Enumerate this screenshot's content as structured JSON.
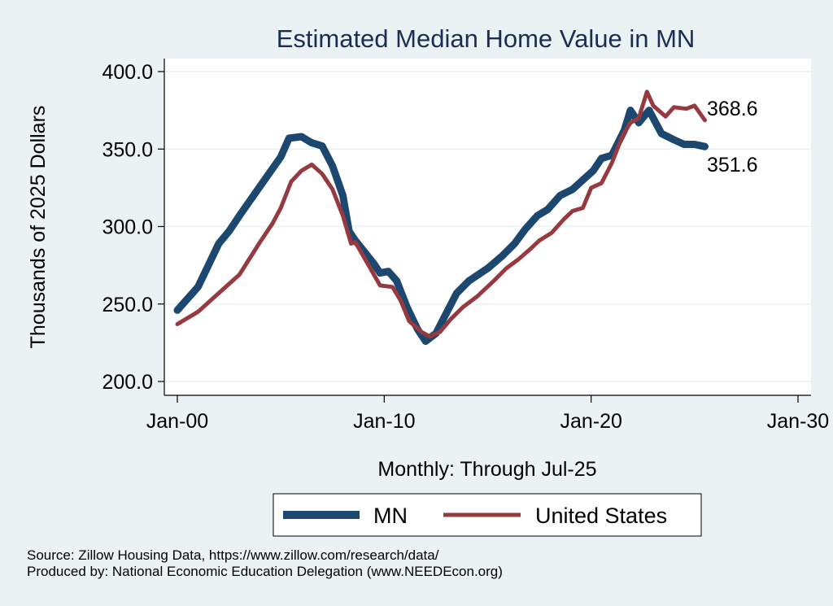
{
  "chart_data": {
    "type": "line",
    "title": "Estimated Median Home Value in MN",
    "xlabel": "Monthly: Through Jul-25",
    "ylabel": "Thousands of 2025 Dollars",
    "ylim": [
      200,
      400
    ],
    "xlim": [
      2000,
      2030
    ],
    "yticks": [
      200,
      250,
      300,
      350,
      400
    ],
    "ytick_labels": [
      "200.0",
      "250.0",
      "300.0",
      "350.0",
      "400.0"
    ],
    "xticks": [
      2000,
      2010,
      2020,
      2030
    ],
    "xtick_labels": [
      "Jan-00",
      "Jan-10",
      "Jan-20",
      "Jan-30"
    ],
    "grid": true,
    "legend_position": "bottom",
    "series": [
      {
        "name": "MN",
        "color": "#1c4870",
        "end_label": "351.6",
        "x": [
          2000.0,
          2001.0,
          2002.0,
          2002.5,
          2003.0,
          2004.0,
          2005.0,
          2005.4,
          2006.0,
          2006.5,
          2007.0,
          2007.5,
          2008.0,
          2008.3,
          2008.6,
          2009.5,
          2009.8,
          2010.2,
          2010.6,
          2011.1,
          2011.6,
          2012.0,
          2012.5,
          2013.0,
          2013.5,
          2014.1,
          2015.0,
          2015.7,
          2016.3,
          2016.8,
          2017.4,
          2017.9,
          2018.5,
          2019.1,
          2019.6,
          2020.1,
          2020.5,
          2021.0,
          2021.6,
          2021.9,
          2022.3,
          2022.8,
          2023.4,
          2024.0,
          2024.5,
          2025.0,
          2025.5
        ],
        "values": [
          246,
          261,
          289,
          297,
          307,
          326,
          345,
          357,
          358,
          354,
          352,
          339,
          320,
          297,
          291,
          276,
          270,
          271,
          265,
          248,
          234,
          226,
          231,
          244,
          257,
          265,
          273,
          281,
          289,
          298,
          307,
          311,
          320,
          324,
          330,
          336,
          344,
          346,
          362,
          375,
          367,
          375,
          360,
          356,
          353,
          353,
          351.6
        ]
      },
      {
        "name": "United States",
        "color": "#963a40",
        "end_label": "368.6",
        "x": [
          2000.0,
          2001.0,
          2002.0,
          2003.0,
          2004.0,
          2004.6,
          2005.0,
          2005.5,
          2006.0,
          2006.5,
          2007.0,
          2007.5,
          2008.0,
          2008.4,
          2008.6,
          2009.2,
          2009.8,
          2010.4,
          2010.8,
          2011.2,
          2011.8,
          2012.2,
          2012.7,
          2013.2,
          2013.8,
          2014.5,
          2015.3,
          2015.9,
          2016.5,
          2017.1,
          2017.5,
          2018.1,
          2018.7,
          2019.1,
          2019.6,
          2020.0,
          2020.5,
          2021.0,
          2021.5,
          2021.9,
          2022.3,
          2022.7,
          2023.0,
          2023.6,
          2024.0,
          2024.6,
          2025.0,
          2025.5
        ],
        "values": [
          237,
          245,
          257,
          269,
          290,
          302,
          312,
          329,
          336,
          340,
          334,
          324,
          307,
          289,
          290,
          276,
          262,
          261,
          252,
          239,
          232,
          229,
          232,
          240,
          248,
          255,
          265,
          273,
          279,
          286,
          291,
          296,
          305,
          310,
          312,
          325,
          328,
          341,
          358,
          367,
          370,
          387,
          378,
          371,
          377,
          376,
          378,
          368.6
        ]
      }
    ]
  },
  "footer": {
    "source": "Source: Zillow Housing Data, https://www.zillow.com/research/data/",
    "produced_by": "Produced by: National Economic Education Delegation (www.NEEDEcon.org)"
  }
}
